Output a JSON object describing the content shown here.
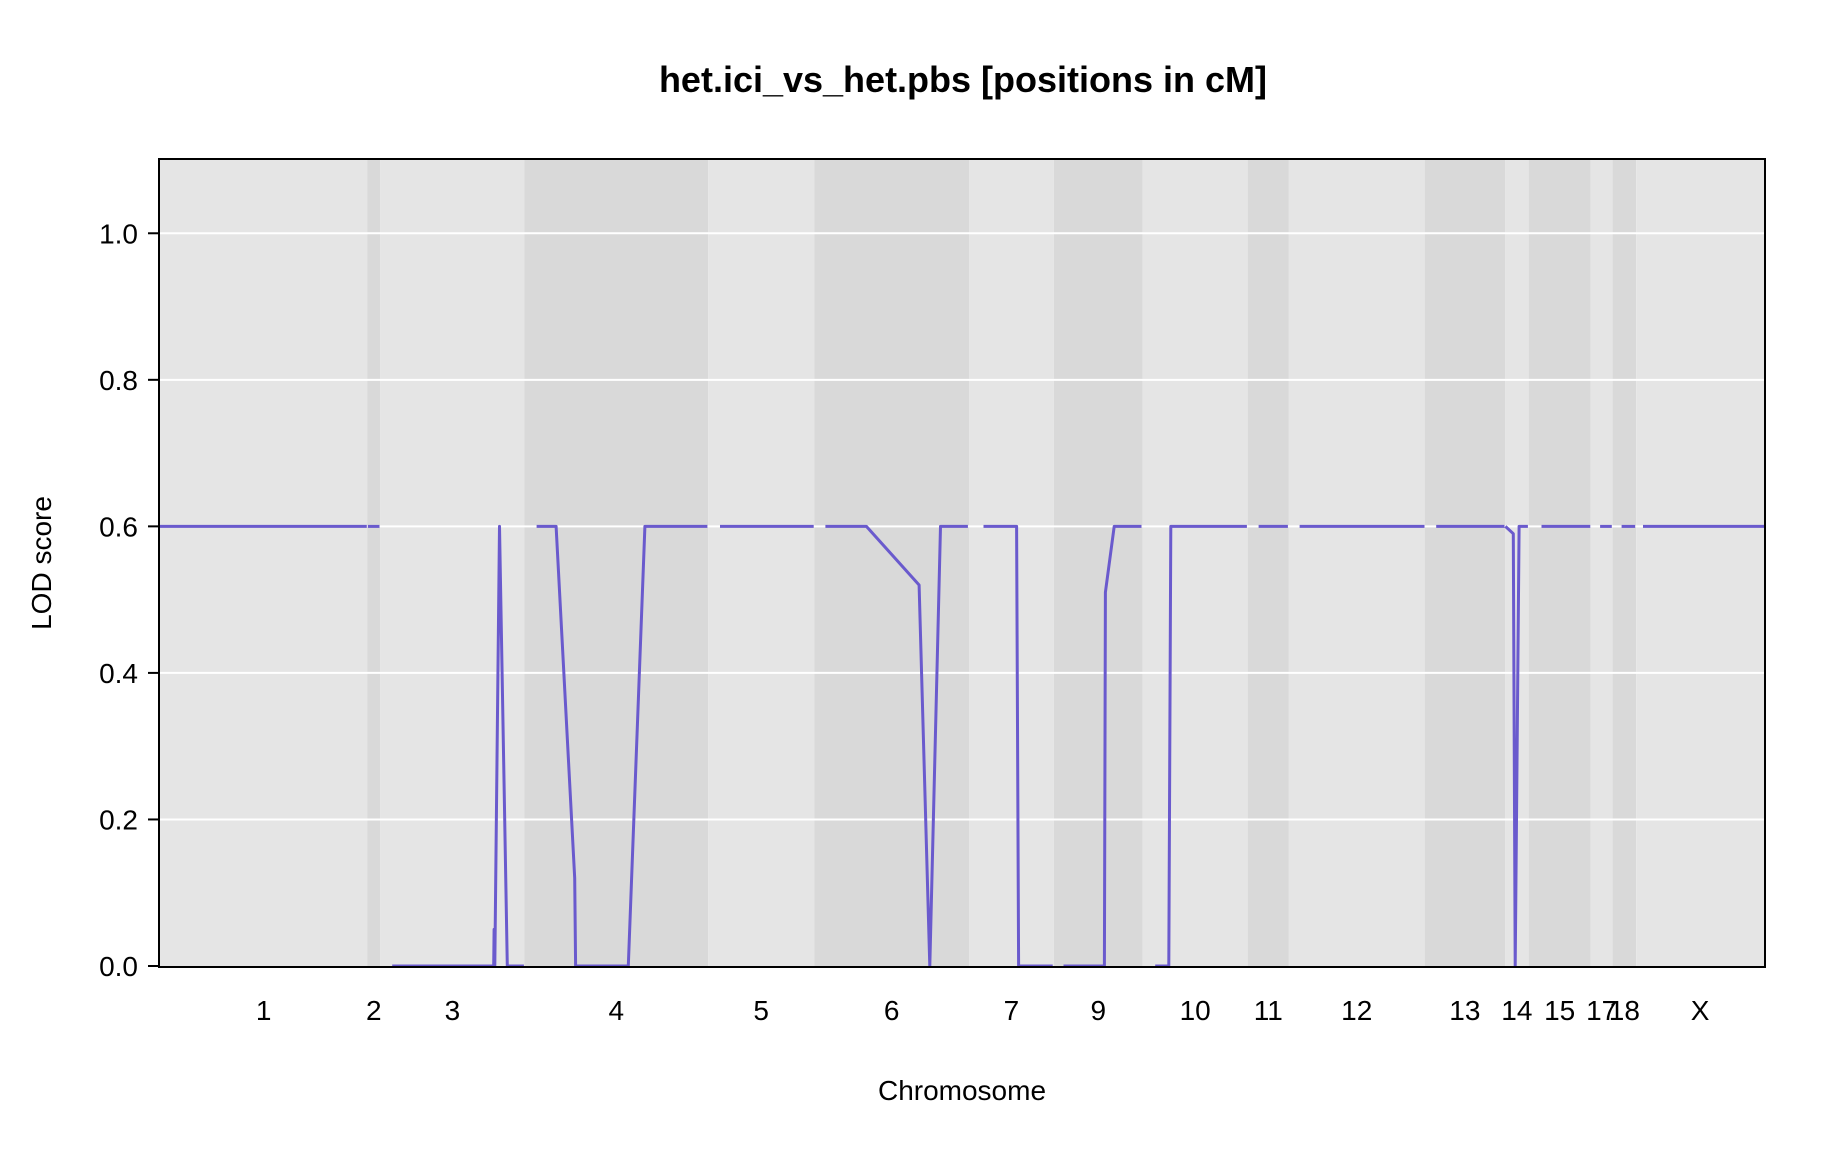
{
  "chart_data": {
    "type": "line",
    "title": "het.ici_vs_het.pbs [positions in cM]",
    "xlabel": "Chromosome",
    "ylabel": "LOD score",
    "ylim": [
      0,
      1.1
    ],
    "yticks": [
      "0.0",
      "0.2",
      "0.4",
      "0.6",
      "0.8",
      "1.0"
    ],
    "grid": true,
    "legend": "none",
    "colors": {
      "line": "#6a5acd",
      "panel_light": "#e5e5e5",
      "panel_dark": "#d9d9d9",
      "gridline": "#ffffff",
      "frame": "#000000"
    },
    "chromosomes": [
      {
        "name": "1",
        "label": "1",
        "start": 0.0,
        "end": 106.2
      },
      {
        "name": "2",
        "label": "2",
        "start": 106.2,
        "end": 112.9
      },
      {
        "name": "3",
        "label": "3",
        "start": 112.9,
        "end": 186.8
      },
      {
        "name": "4",
        "label": "4",
        "start": 186.8,
        "end": 280.9
      },
      {
        "name": "5",
        "label": "5",
        "start": 280.9,
        "end": 335.3
      },
      {
        "name": "6",
        "label": "6",
        "start": 335.3,
        "end": 414.6
      },
      {
        "name": "7",
        "label": "7",
        "start": 414.6,
        "end": 458.1
      },
      {
        "name": "9",
        "label": "9",
        "start": 458.1,
        "end": 503.6
      },
      {
        "name": "10",
        "label": "10",
        "start": 503.6,
        "end": 557.4
      },
      {
        "name": "11",
        "label": "11",
        "start": 557.4,
        "end": 578.5
      },
      {
        "name": "12",
        "label": "12",
        "start": 578.5,
        "end": 648.1
      },
      {
        "name": "13",
        "label": "13",
        "start": 648.1,
        "end": 689.3
      },
      {
        "name": "14",
        "label": "14",
        "start": 689.3,
        "end": 701.4
      },
      {
        "name": "15",
        "label": "15",
        "start": 701.4,
        "end": 733.2
      },
      {
        "name": "17",
        "label": "17",
        "start": 733.2,
        "end": 744.4
      },
      {
        "name": "18",
        "label": "18",
        "start": 744.4,
        "end": 756.5
      },
      {
        "name": "X",
        "label": "X",
        "start": 756.5,
        "end": 822.0
      }
    ],
    "series": [
      {
        "segments": [
          [
            [
              0,
              0.6
            ],
            [
              106,
              0.6
            ]
          ],
          [
            [
              106.5,
              0.6
            ],
            [
              112.5,
              0.6
            ]
          ],
          [
            [
              119,
              0
            ],
            [
              171,
              0
            ],
            [
              171.2,
              0.05
            ],
            [
              171.6,
              0
            ],
            [
              174,
              0.6
            ],
            [
              178,
              0
            ],
            [
              186.5,
              0
            ]
          ],
          [
            [
              193,
              0.6
            ],
            [
              203,
              0.6
            ],
            [
              212.5,
              0.12
            ],
            [
              213,
              0
            ],
            [
              240,
              0
            ],
            [
              248.5,
              0.6
            ],
            [
              280.5,
              0.6
            ]
          ],
          [
            [
              287,
              0.6
            ],
            [
              335,
              0.6
            ]
          ],
          [
            [
              341,
              0.6
            ],
            [
              362,
              0.6
            ],
            [
              389,
              0.52
            ],
            [
              394.5,
              0
            ],
            [
              400,
              0.6
            ],
            [
              414,
              0.6
            ]
          ],
          [
            [
              422,
              0.6
            ],
            [
              439,
              0.6
            ],
            [
              440,
              0
            ],
            [
              457.5,
              0
            ]
          ],
          [
            [
              463,
              0
            ],
            [
              484,
              0
            ],
            [
              484.5,
              0.51
            ],
            [
              489,
              0.6
            ],
            [
              503,
              0.6
            ]
          ],
          [
            [
              510,
              0
            ],
            [
              517,
              0
            ],
            [
              518,
              0.6
            ],
            [
              557,
              0.6
            ]
          ],
          [
            [
              563,
              0.6
            ],
            [
              578,
              0.6
            ]
          ],
          [
            [
              584,
              0.6
            ],
            [
              648,
              0.6
            ]
          ],
          [
            [
              654,
              0.6
            ],
            [
              689,
              0.6
            ]
          ],
          [
            [
              689.5,
              0.6
            ],
            [
              693.5,
              0.59
            ],
            [
              694.5,
              0
            ],
            [
              696.5,
              0.6
            ],
            [
              701,
              0.6
            ]
          ],
          [
            [
              708,
              0.6
            ],
            [
              733,
              0.6
            ]
          ],
          [
            [
              738,
              0.6
            ],
            [
              744,
              0.6
            ]
          ],
          [
            [
              749,
              0.6
            ],
            [
              756,
              0.6
            ]
          ],
          [
            [
              760,
              0.6
            ],
            [
              822,
              0.6
            ]
          ]
        ]
      }
    ]
  }
}
